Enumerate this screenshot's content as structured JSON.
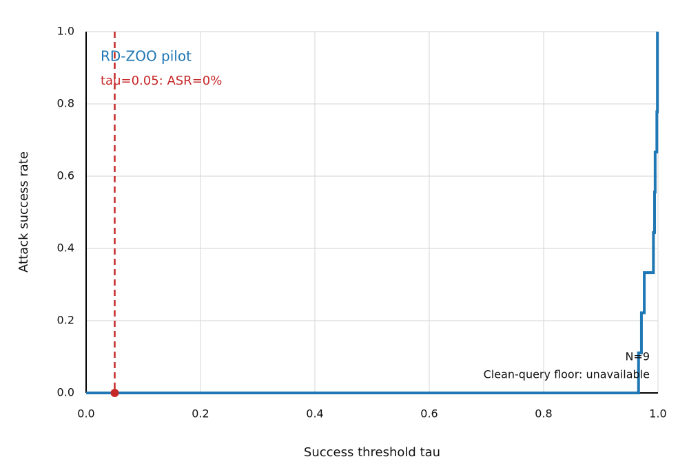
{
  "chart_data": {
    "type": "step-line",
    "x_label": "Success threshold tau",
    "y_label": "Attack success rate",
    "xlim": [
      0,
      1
    ],
    "ylim": [
      0,
      1
    ],
    "xticks": [
      {
        "value": 0,
        "label": "0.0"
      },
      0.2,
      0.4,
      0.6,
      0.8,
      {
        "value": 1,
        "label": "1.0"
      }
    ],
    "yticks": [
      {
        "value": 0,
        "label": "0.0"
      },
      0.2,
      0.4,
      0.6,
      0.8,
      {
        "value": 1,
        "label": "1.0"
      }
    ],
    "grid": true,
    "series": [
      {
        "name": "RD-ZOO pilot",
        "color": "#1f77b4",
        "x": [
          0,
          0.966,
          0.966,
          0.971,
          0.971,
          0.976,
          0.976,
          0.992,
          0.992,
          0.994,
          0.994,
          0.995,
          0.995,
          0.998,
          0.998,
          0.999,
          0.999
        ],
        "values": [
          0,
          0,
          0.111,
          0.111,
          0.222,
          0.222,
          0.333,
          0.333,
          0.444,
          0.444,
          0.556,
          0.556,
          0.667,
          0.667,
          0.778,
          0.778,
          1.0
        ]
      }
    ],
    "threshold": {
      "tau": 0.05,
      "asr": 0,
      "color": "#c62828",
      "label": "tau=0.05: ASR=0%"
    },
    "annotations": [
      "N=9",
      "Clean-query floor: unavailable"
    ]
  }
}
